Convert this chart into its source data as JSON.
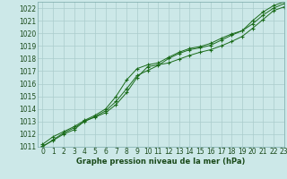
{
  "xlabel": "Graphe pression niveau de la mer (hPa)",
  "background_color": "#cce8e8",
  "grid_color": "#aacccc",
  "line_color": "#1a6b1a",
  "xlim": [
    -0.5,
    23
  ],
  "ylim": [
    1011,
    1022.5
  ],
  "xticks": [
    0,
    1,
    2,
    3,
    4,
    5,
    6,
    7,
    8,
    9,
    10,
    11,
    12,
    13,
    14,
    15,
    16,
    17,
    18,
    19,
    20,
    21,
    22,
    23
  ],
  "yticks": [
    1011,
    1012,
    1013,
    1014,
    1015,
    1016,
    1017,
    1018,
    1019,
    1020,
    1021,
    1022
  ],
  "curve1": [
    1011.2,
    1011.8,
    1012.2,
    1012.6,
    1013.1,
    1013.5,
    1014.0,
    1015.0,
    1016.3,
    1017.2,
    1017.5,
    1017.65,
    1018.1,
    1018.5,
    1018.8,
    1018.95,
    1019.2,
    1019.6,
    1019.95,
    1020.2,
    1021.0,
    1021.7,
    1022.2,
    1022.5
  ],
  "curve2": [
    1011.05,
    1011.5,
    1012.0,
    1012.35,
    1013.05,
    1013.35,
    1013.7,
    1014.35,
    1015.3,
    1016.5,
    1017.35,
    1017.5,
    1017.65,
    1017.95,
    1018.25,
    1018.5,
    1018.7,
    1019.0,
    1019.35,
    1019.75,
    1020.4,
    1021.1,
    1021.8,
    1022.1
  ],
  "curve3": [
    1011.0,
    1011.55,
    1012.1,
    1012.5,
    1013.0,
    1013.4,
    1013.85,
    1014.6,
    1015.6,
    1016.65,
    1017.05,
    1017.45,
    1018.0,
    1018.4,
    1018.7,
    1018.85,
    1019.05,
    1019.45,
    1019.85,
    1020.2,
    1020.75,
    1021.45,
    1022.0,
    1022.35
  ],
  "tick_fontsize": 5.5,
  "label_fontsize": 6.0,
  "tick_color": "#1a4a1a",
  "label_color": "#1a4a1a"
}
